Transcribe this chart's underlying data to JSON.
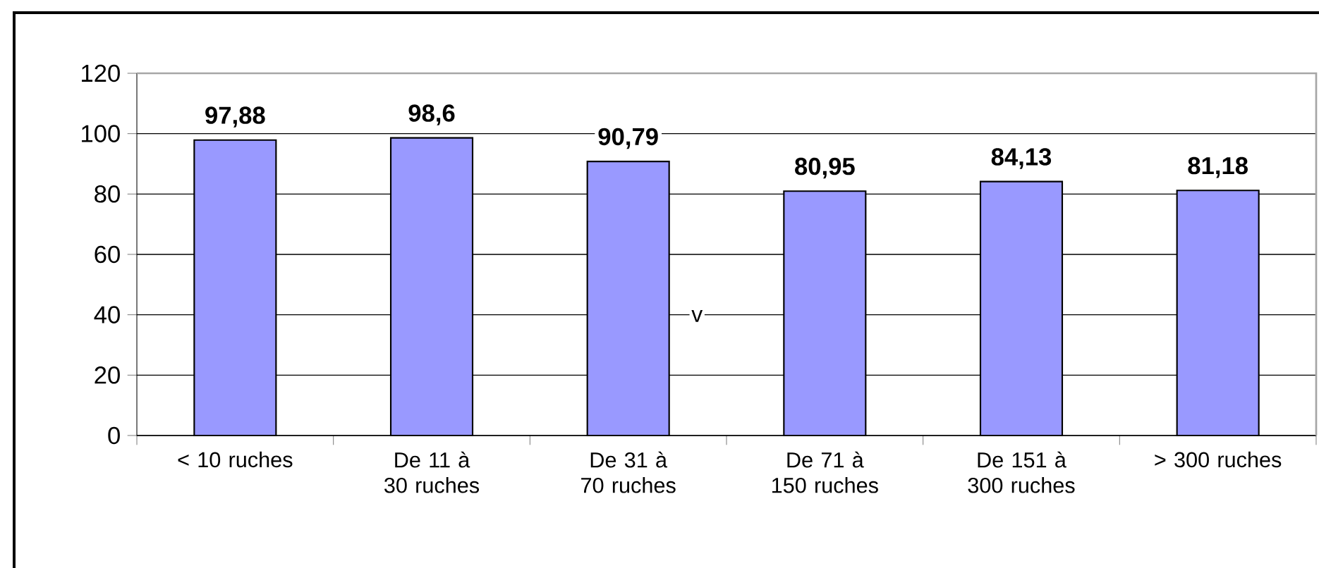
{
  "chart_data": {
    "type": "bar",
    "categories": [
      "< 10 ruches",
      "De 11 à 30 ruches",
      "De 31 à 70 ruches",
      "De 71 à 150 ruches",
      "De 151 à 300 ruches",
      "> 300 ruches"
    ],
    "values": [
      97.88,
      98.6,
      90.79,
      80.95,
      84.13,
      81.18
    ],
    "value_labels": [
      "97,88",
      "98,6",
      "90,79",
      "80,95",
      "84,13",
      "81,18"
    ],
    "color": "#9999ff",
    "ylim": [
      0,
      120
    ],
    "yticks": [
      0,
      20,
      40,
      60,
      80,
      100,
      120
    ],
    "grid": "y",
    "annotations": [
      "v"
    ]
  }
}
